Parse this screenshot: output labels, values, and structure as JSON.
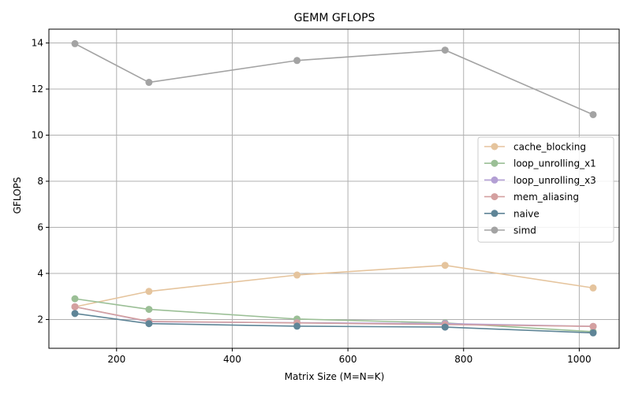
{
  "chart_data": {
    "type": "line",
    "title": "GEMM GFLOPS",
    "xlabel": "Matrix Size (M=N=K)",
    "ylabel": "GFLOPS",
    "x": [
      128,
      256,
      512,
      768,
      1024
    ],
    "xlim": [
      83,
      1069
    ],
    "ylim": [
      0.75,
      14.6
    ],
    "xticks": [
      200,
      400,
      600,
      800,
      1000
    ],
    "yticks": [
      2,
      4,
      6,
      8,
      10,
      12,
      14
    ],
    "grid": true,
    "legend_position": "center-right",
    "series": [
      {
        "name": "cache_blocking",
        "color": "#e5c49d",
        "values": [
          2.55,
          3.22,
          3.93,
          4.35,
          3.37
        ]
      },
      {
        "name": "loop_unrolling_x1",
        "color": "#9bbf96",
        "values": [
          2.9,
          2.44,
          2.02,
          1.85,
          1.47
        ]
      },
      {
        "name": "loop_unrolling_x3",
        "color": "#b39fd4",
        "values": [
          2.55,
          1.9,
          1.86,
          1.82,
          1.7
        ]
      },
      {
        "name": "mem_aliasing",
        "color": "#d4a0a0",
        "values": [
          2.55,
          1.92,
          1.85,
          1.78,
          1.7
        ]
      },
      {
        "name": "naive",
        "color": "#5f8597",
        "values": [
          2.26,
          1.82,
          1.71,
          1.67,
          1.42
        ]
      },
      {
        "name": "simd",
        "color": "#a3a3a3",
        "values": [
          13.97,
          12.29,
          13.24,
          13.69,
          10.89
        ]
      }
    ]
  }
}
